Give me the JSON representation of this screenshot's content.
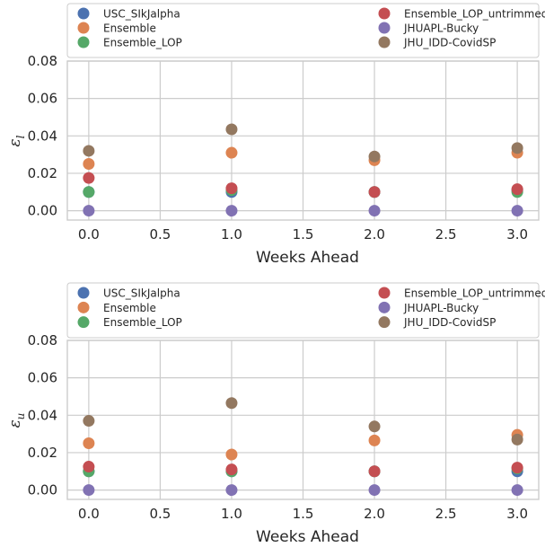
{
  "chart_data": [
    {
      "type": "scatter",
      "xlabel": "Weeks Ahead",
      "ylabel": "ε",
      "ylabel_sub": "l",
      "xlim": [
        -0.15,
        3.15
      ],
      "ylim": [
        -0.005,
        0.08
      ],
      "xticks": [
        "0.0",
        "0.5",
        "1.0",
        "1.5",
        "2.0",
        "2.5",
        "3.0"
      ],
      "yticks": [
        "0.00",
        "0.02",
        "0.04",
        "0.06",
        "0.08"
      ],
      "grid": true,
      "legend_position": "above, two columns",
      "x": [
        0,
        1,
        2,
        3
      ],
      "series": [
        {
          "name": "USC_SIkJalpha",
          "color": "#4c72b0",
          "values": [
            0.01,
            0.01,
            0.01,
            0.011
          ]
        },
        {
          "name": "Ensemble",
          "color": "#dd8452",
          "values": [
            0.025,
            0.031,
            0.027,
            0.031
          ]
        },
        {
          "name": "Ensemble_LOP",
          "color": "#55a868",
          "values": [
            0.01,
            0.011,
            0.01,
            0.01
          ]
        },
        {
          "name": "Ensemble_LOP_untrimmed",
          "color": "#c44e52",
          "values": [
            0.0175,
            0.012,
            0.01,
            0.0115
          ]
        },
        {
          "name": "JHUAPL-Bucky",
          "color": "#8172b3",
          "values": [
            0.0,
            0.0,
            0.0,
            0.0
          ]
        },
        {
          "name": "JHU_IDD-CovidSP",
          "color": "#937860",
          "values": [
            0.032,
            0.0435,
            0.029,
            0.0335
          ]
        }
      ]
    },
    {
      "type": "scatter",
      "xlabel": "Weeks Ahead",
      "ylabel": "ε",
      "ylabel_sub": "u",
      "xlim": [
        -0.15,
        3.15
      ],
      "ylim": [
        -0.005,
        0.08
      ],
      "xticks": [
        "0.0",
        "0.5",
        "1.0",
        "1.5",
        "2.0",
        "2.5",
        "3.0"
      ],
      "yticks": [
        "0.00",
        "0.02",
        "0.04",
        "0.06",
        "0.08"
      ],
      "grid": true,
      "legend_position": "above, two columns",
      "x": [
        0,
        1,
        2,
        3
      ],
      "series": [
        {
          "name": "USC_SIkJalpha",
          "color": "#4c72b0",
          "values": [
            0.01,
            0.01,
            0.01,
            0.01
          ]
        },
        {
          "name": "Ensemble",
          "color": "#dd8452",
          "values": [
            0.025,
            0.019,
            0.0265,
            0.0295
          ]
        },
        {
          "name": "Ensemble_LOP",
          "color": "#55a868",
          "values": [
            0.01,
            0.01,
            0.01,
            0.0115
          ]
        },
        {
          "name": "Ensemble_LOP_untrimmed",
          "color": "#c44e52",
          "values": [
            0.0125,
            0.011,
            0.01,
            0.012
          ]
        },
        {
          "name": "JHUAPL-Bucky",
          "color": "#8172b3",
          "values": [
            0.0,
            0.0,
            0.0,
            0.0
          ]
        },
        {
          "name": "JHU_IDD-CovidSP",
          "color": "#937860",
          "values": [
            0.037,
            0.0465,
            0.034,
            0.027
          ]
        }
      ]
    }
  ]
}
